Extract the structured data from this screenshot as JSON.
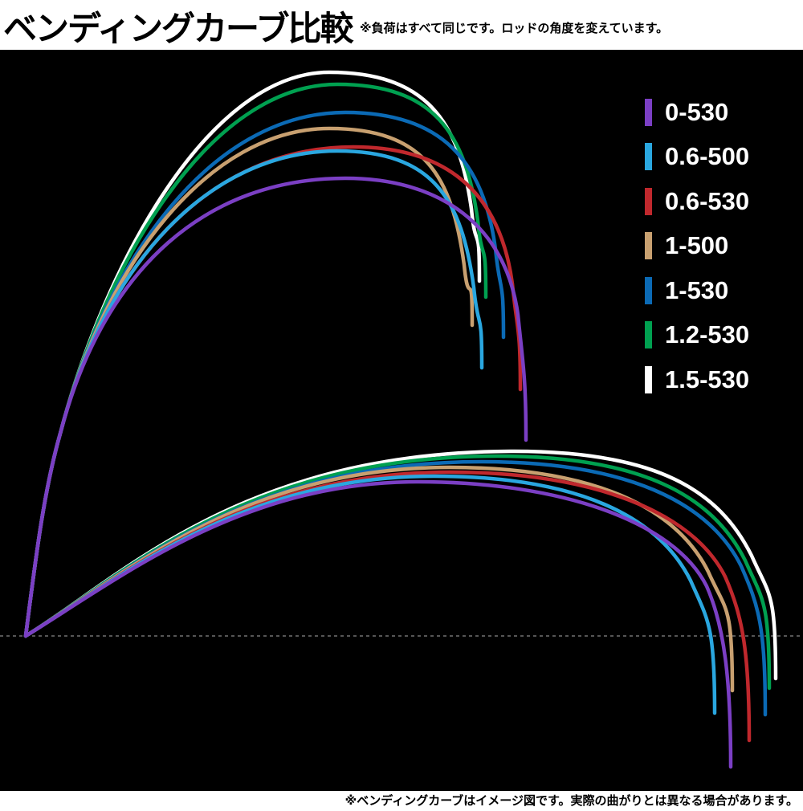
{
  "title": "ベンディングカーブ比較",
  "note": "※負荷はすべて同じです。ロッドの角度を変えています。",
  "footer": "※ベンディングカーブはイメージ図です。実際の曲がりとは異なる場合があります。",
  "series": [
    {
      "name": "0-530",
      "color": "#7b3fc4"
    },
    {
      "name": "0.6-500",
      "color": "#2aa7e0"
    },
    {
      "name": "0.6-530",
      "color": "#c0282d"
    },
    {
      "name": "1-500",
      "color": "#c8a070"
    },
    {
      "name": "1-530",
      "color": "#0b6ab5"
    },
    {
      "name": "1.2-530",
      "color": "#00a050"
    },
    {
      "name": "1.5-530",
      "color": "#ffffff"
    }
  ]
}
